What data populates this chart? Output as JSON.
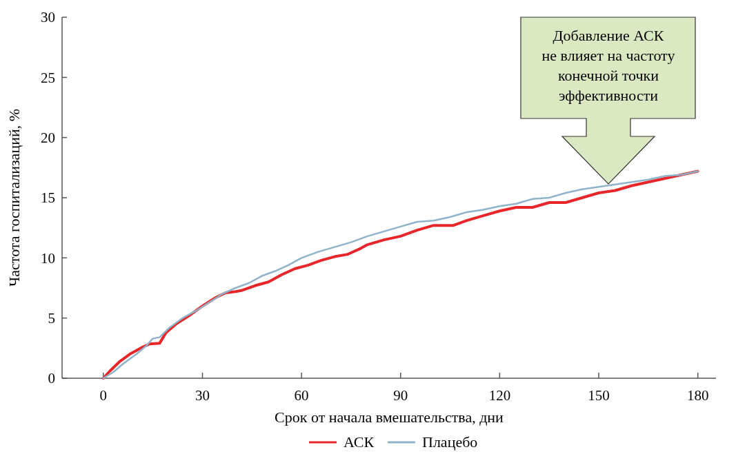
{
  "chart_data": {
    "type": "line",
    "xlabel": "Срок от начала вмешательства, дни",
    "ylabel": "Частота госпитализаций, %",
    "xlim": [
      -12.5,
      185.5
    ],
    "ylim": [
      0,
      30
    ],
    "xticks": [
      0,
      30,
      60,
      90,
      120,
      150,
      180
    ],
    "yticks": [
      0,
      5,
      10,
      15,
      20,
      25,
      30
    ],
    "grid": false,
    "legend": "bottom",
    "line_style": "solid",
    "marker": "none",
    "annotations": [
      "Добавление АСК\nне влияет на частоту\nконечной точки\nэффективности"
    ],
    "series": [
      {
        "name": "АСК",
        "color": "#e8262a",
        "x": [
          0,
          2,
          5,
          8,
          12,
          14,
          17,
          19,
          22,
          26,
          30,
          34,
          37,
          40,
          42,
          46,
          50,
          54,
          58,
          62,
          66,
          70,
          74,
          78,
          80,
          85,
          90,
          95,
          100,
          106,
          110,
          115,
          120,
          125,
          130,
          135,
          140,
          145,
          150,
          155,
          160,
          165,
          170,
          175,
          180
        ],
        "values": [
          0,
          0.6,
          1.4,
          2.0,
          2.6,
          2.85,
          2.9,
          3.8,
          4.5,
          5.2,
          6.0,
          6.7,
          7.1,
          7.2,
          7.3,
          7.7,
          8.0,
          8.6,
          9.1,
          9.4,
          9.8,
          10.1,
          10.3,
          10.8,
          11.1,
          11.5,
          11.8,
          12.3,
          12.7,
          12.7,
          13.1,
          13.5,
          13.9,
          14.2,
          14.2,
          14.6,
          14.6,
          15.0,
          15.4,
          15.6,
          16.0,
          16.3,
          16.6,
          16.9,
          17.2
        ]
      },
      {
        "name": "Плацебо",
        "color": "#8fb3c8",
        "x": [
          0,
          3,
          6,
          10,
          13,
          15,
          17,
          20,
          24,
          28,
          32,
          36,
          40,
          44,
          48,
          52,
          56,
          60,
          65,
          70,
          75,
          80,
          85,
          90,
          95,
          100,
          105,
          110,
          115,
          120,
          125,
          130,
          135,
          140,
          145,
          150,
          155,
          160,
          165,
          170,
          175,
          180
        ],
        "values": [
          0,
          0.5,
          1.2,
          2.0,
          2.7,
          3.3,
          3.4,
          4.2,
          5.0,
          5.6,
          6.3,
          7.0,
          7.5,
          7.9,
          8.5,
          8.9,
          9.4,
          10.0,
          10.5,
          10.9,
          11.3,
          11.8,
          12.2,
          12.6,
          13.0,
          13.1,
          13.4,
          13.8,
          14.0,
          14.3,
          14.5,
          14.9,
          15.0,
          15.4,
          15.7,
          15.9,
          16.1,
          16.3,
          16.5,
          16.8,
          16.9,
          17.2
        ]
      }
    ]
  }
}
